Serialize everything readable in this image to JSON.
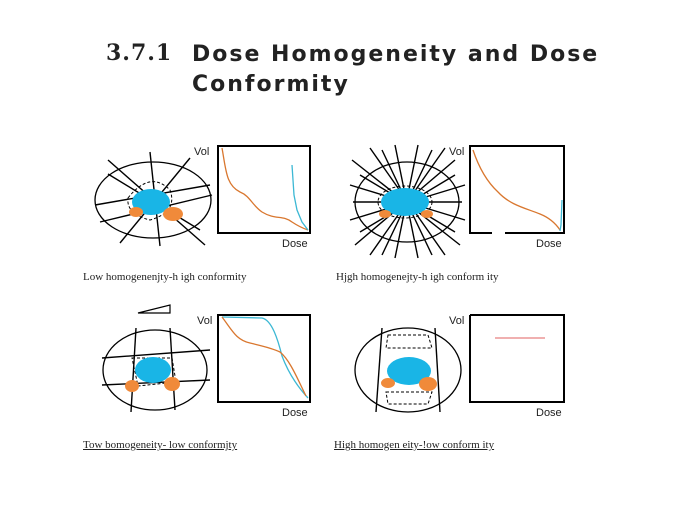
{
  "section": {
    "number": "3.7.1",
    "title": "Dose Homogeneity  and Dose Conformity"
  },
  "axes": {
    "y_label": "Vol",
    "x_label": "Dose"
  },
  "panels": [
    {
      "id": "tl",
      "caption": "Low homogenenjty-h igh  conformity"
    },
    {
      "id": "tr",
      "caption": "Hjgh homogenejty-h igh  conform ity"
    },
    {
      "id": "bl",
      "caption": "Tow bomogeneity- low  conformjty"
    },
    {
      "id": "br",
      "caption": "High  homogen eity-!ow conform ity"
    }
  ],
  "colors": {
    "target": "#19b5e6",
    "organ_at_risk": "#f08a3a",
    "dvh_target": "#3cb8d4",
    "dvh_risk": "#d9772f",
    "flat_line": "#e06060"
  }
}
